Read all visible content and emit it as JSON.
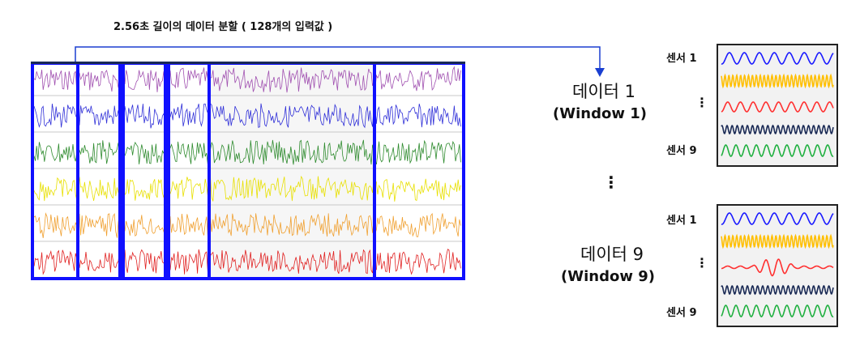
{
  "caption": "2.56초 길이의 데이터 분할 ( 128개의 입력값 )",
  "colors": {
    "window_border": "#1010ff",
    "arrow": "#1a3fd1",
    "channels": [
      "#a050b0",
      "#3030d8",
      "#2e8b2e",
      "#e8e000",
      "#f0a030",
      "#e02020"
    ],
    "sensor_waves": [
      "#1a1aff",
      "#ffbf00",
      "#ff3030",
      "#1a2a55",
      "#20b040"
    ]
  },
  "window1": {
    "title": "데이터 1",
    "subtitle": "(Window 1)",
    "sensor_first": "센서 1",
    "sensor_last": "센서 9",
    "dots": "⋮"
  },
  "window9": {
    "title": "데이터 9",
    "subtitle": "(Window 9)",
    "sensor_first": "센서 1",
    "sensor_last": "센서 9",
    "dots": "⋮"
  },
  "between_dots": "⋮",
  "icons": {
    "arrow": "down-arrow-icon"
  }
}
